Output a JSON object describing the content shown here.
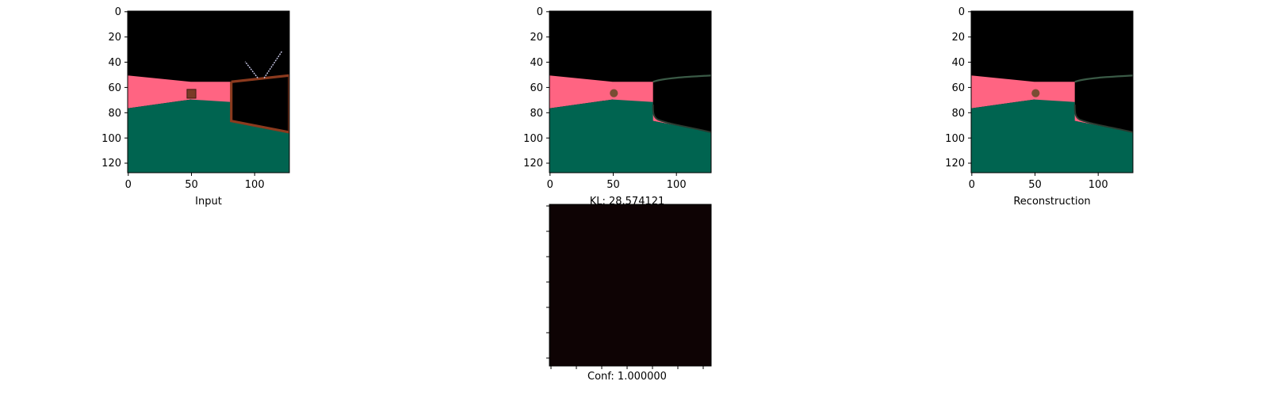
{
  "panels": [
    {
      "id": "input",
      "caption": "Input",
      "xticks": [
        "0",
        "50",
        "100"
      ],
      "yticks": [
        "0",
        "20",
        "40",
        "60",
        "80",
        "100",
        "120"
      ]
    },
    {
      "id": "output",
      "caption": "KL: 28.574121",
      "xticks": [
        "0",
        "50",
        "100"
      ],
      "yticks": [
        "0",
        "20",
        "40",
        "60",
        "80",
        "100",
        "120"
      ]
    },
    {
      "id": "reconstruction",
      "caption": "Reconstruction",
      "xticks": [
        "0",
        "50",
        "100"
      ],
      "yticks": [
        "0",
        "20",
        "40",
        "60",
        "80",
        "100",
        "120"
      ]
    }
  ],
  "confidence_panel": {
    "caption": "Conf: 1.000000",
    "fill": "#0e0304"
  },
  "colors": {
    "sky": "#000000",
    "wall": "#ff6482",
    "floor": "#006450",
    "frame": "#8b3a1e",
    "box": "#7a3a26"
  },
  "image_size": [
    128,
    128
  ]
}
